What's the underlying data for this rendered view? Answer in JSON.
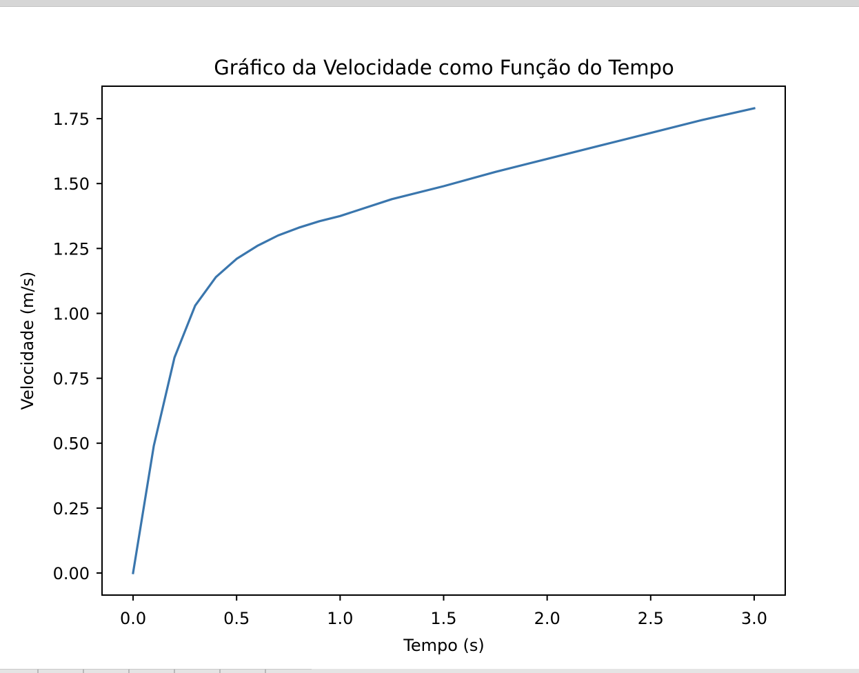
{
  "colors": {
    "line": "#3a76ad",
    "axes": "#000000",
    "background": "#ffffff"
  },
  "chart_data": {
    "type": "line",
    "title": "Gráfico da Velocidade como Função do Tempo",
    "xlabel": "Tempo (s)",
    "ylabel": "Velocidade (m/s)",
    "xlim": [
      -0.15,
      3.15
    ],
    "ylim": [
      -0.085,
      1.875
    ],
    "grid": false,
    "legend": "none",
    "x_ticks": [
      0.0,
      0.5,
      1.0,
      1.5,
      2.0,
      2.5,
      3.0
    ],
    "x_tick_labels": [
      "0.0",
      "0.5",
      "1.0",
      "1.5",
      "2.0",
      "2.5",
      "3.0"
    ],
    "y_ticks": [
      0.0,
      0.25,
      0.5,
      0.75,
      1.0,
      1.25,
      1.5,
      1.75
    ],
    "y_tick_labels": [
      "0.00",
      "0.25",
      "0.50",
      "0.75",
      "1.00",
      "1.25",
      "1.50",
      "1.75"
    ],
    "series": [
      {
        "x": [
          0.0,
          0.1,
          0.2,
          0.3,
          0.4,
          0.5,
          0.6,
          0.7,
          0.8,
          0.9,
          1.0,
          1.25,
          1.5,
          1.75,
          2.0,
          2.25,
          2.5,
          2.75,
          3.0
        ],
        "y": [
          0.0,
          0.49,
          0.83,
          1.03,
          1.14,
          1.21,
          1.26,
          1.3,
          1.33,
          1.355,
          1.375,
          1.44,
          1.49,
          1.545,
          1.595,
          1.645,
          1.695,
          1.745,
          1.79
        ]
      }
    ]
  }
}
